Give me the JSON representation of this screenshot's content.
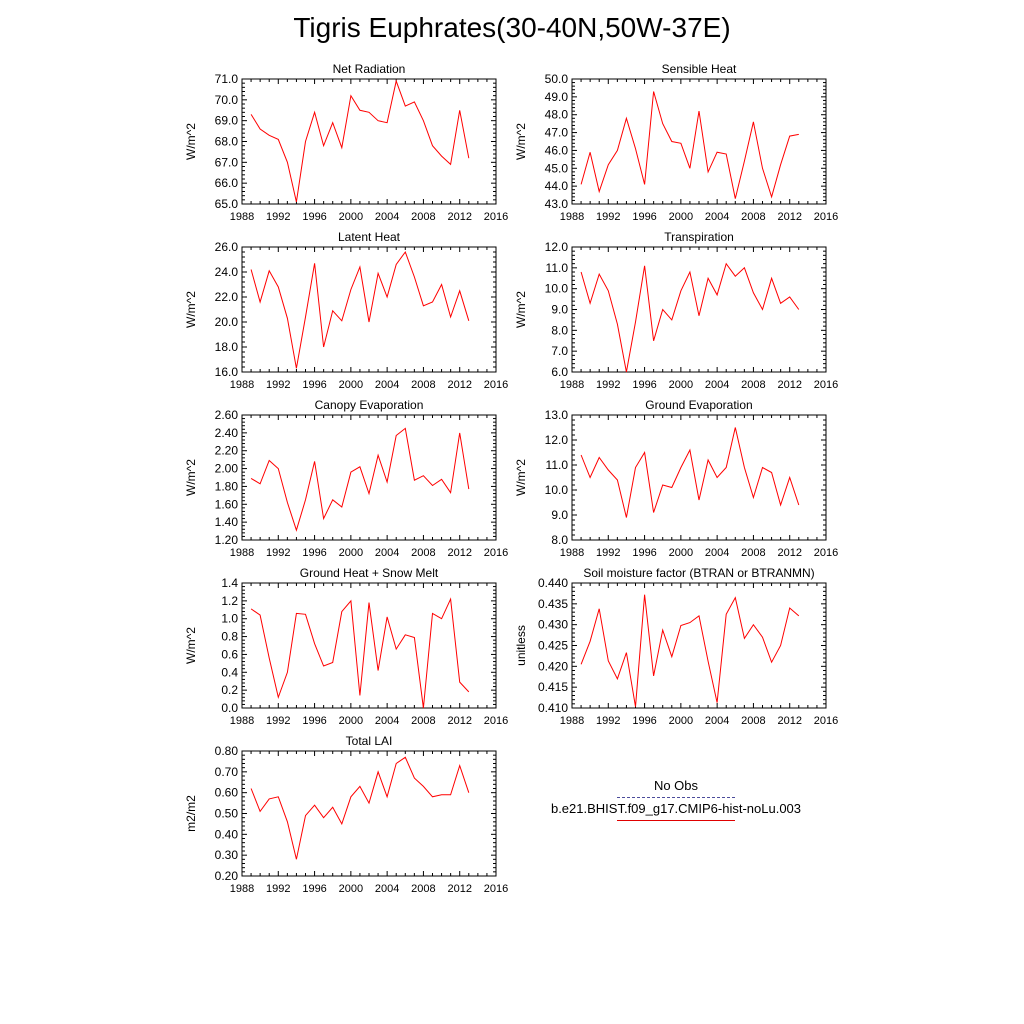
{
  "title": "Tigris Euphrates(30-40N,50W-37E)",
  "colors": {
    "line": "#ff0000",
    "obs": "#4b4b9a",
    "axis": "#000000"
  },
  "legend": {
    "obs_label": "No Obs",
    "model_label": "b.e21.BHIST.f09_g17.CMIP6-hist-noLu.003"
  },
  "chart_data": [
    {
      "type": "line",
      "title": "Net Radiation",
      "ylabel": "W/m^2",
      "xlim": [
        1988,
        2016
      ],
      "xticks": [
        1988,
        1992,
        1996,
        2000,
        2004,
        2008,
        2012,
        2016
      ],
      "ylim": [
        65.0,
        71.0
      ],
      "yticks": [
        65.0,
        66.0,
        67.0,
        68.0,
        69.0,
        70.0,
        71.0
      ],
      "ydecimals": 1,
      "x": [
        1989,
        1990,
        1991,
        1992,
        1993,
        1994,
        1995,
        1996,
        1997,
        1998,
        1999,
        2000,
        2001,
        2002,
        2003,
        2004,
        2005,
        2006,
        2007,
        2008,
        2009,
        2010,
        2011,
        2012,
        2013
      ],
      "series": [
        {
          "name": "b.e21.BHIST.f09_g17.CMIP6-hist-noLu.003",
          "values": [
            69.3,
            68.6,
            68.3,
            68.1,
            67.0,
            65.1,
            68.0,
            69.4,
            67.8,
            68.9,
            67.7,
            70.2,
            69.5,
            69.4,
            69.0,
            68.9,
            70.9,
            69.7,
            69.9,
            69.0,
            67.8,
            67.3,
            66.9,
            69.5,
            67.2
          ]
        }
      ]
    },
    {
      "type": "line",
      "title": "Sensible Heat",
      "ylabel": "W/m^2",
      "xlim": [
        1988,
        2016
      ],
      "xticks": [
        1988,
        1992,
        1996,
        2000,
        2004,
        2008,
        2012,
        2016
      ],
      "ylim": [
        43.0,
        50.0
      ],
      "yticks": [
        43.0,
        44.0,
        45.0,
        46.0,
        47.0,
        48.0,
        49.0,
        50.0
      ],
      "ydecimals": 1,
      "x": [
        1989,
        1990,
        1991,
        1992,
        1993,
        1994,
        1995,
        1996,
        1997,
        1998,
        1999,
        2000,
        2001,
        2002,
        2003,
        2004,
        2005,
        2006,
        2007,
        2008,
        2009,
        2010,
        2011,
        2012,
        2013
      ],
      "series": [
        {
          "name": "b.e21.BHIST.f09_g17.CMIP6-hist-noLu.003",
          "values": [
            44.1,
            45.9,
            43.7,
            45.2,
            46.0,
            47.8,
            46.1,
            44.1,
            49.3,
            47.5,
            46.5,
            46.4,
            45.0,
            48.2,
            44.8,
            45.9,
            45.8,
            43.3,
            45.4,
            47.6,
            45.0,
            43.4,
            45.2,
            46.8,
            46.9
          ]
        }
      ]
    },
    {
      "type": "line",
      "title": "Latent Heat",
      "ylabel": "W/m^2",
      "xlim": [
        1988,
        2016
      ],
      "xticks": [
        1988,
        1992,
        1996,
        2000,
        2004,
        2008,
        2012,
        2016
      ],
      "ylim": [
        16.0,
        26.0
      ],
      "yticks": [
        16.0,
        18.0,
        20.0,
        22.0,
        24.0,
        26.0
      ],
      "ydecimals": 1,
      "x": [
        1989,
        1990,
        1991,
        1992,
        1993,
        1994,
        1995,
        1996,
        1997,
        1998,
        1999,
        2000,
        2001,
        2002,
        2003,
        2004,
        2005,
        2006,
        2007,
        2008,
        2009,
        2010,
        2011,
        2012,
        2013
      ],
      "series": [
        {
          "name": "b.e21.BHIST.f09_g17.CMIP6-hist-noLu.003",
          "values": [
            24.2,
            21.6,
            24.1,
            22.8,
            20.3,
            16.3,
            20.4,
            24.7,
            18.0,
            20.9,
            20.1,
            22.6,
            24.4,
            20.0,
            23.9,
            22.0,
            24.6,
            25.6,
            23.6,
            21.3,
            21.6,
            23.0,
            20.4,
            22.5,
            20.1
          ]
        }
      ]
    },
    {
      "type": "line",
      "title": "Transpiration",
      "ylabel": "W/m^2",
      "xlim": [
        1988,
        2016
      ],
      "xticks": [
        1988,
        1992,
        1996,
        2000,
        2004,
        2008,
        2012,
        2016
      ],
      "ylim": [
        6.0,
        12.0
      ],
      "yticks": [
        6.0,
        7.0,
        8.0,
        9.0,
        10.0,
        11.0,
        12.0
      ],
      "ydecimals": 1,
      "x": [
        1989,
        1990,
        1991,
        1992,
        1993,
        1994,
        1995,
        1996,
        1997,
        1998,
        1999,
        2000,
        2001,
        2002,
        2003,
        2004,
        2005,
        2006,
        2007,
        2008,
        2009,
        2010,
        2011,
        2012,
        2013
      ],
      "series": [
        {
          "name": "b.e21.BHIST.f09_g17.CMIP6-hist-noLu.003",
          "values": [
            10.8,
            9.3,
            10.7,
            9.9,
            8.3,
            6.0,
            8.4,
            11.1,
            7.5,
            9.0,
            8.5,
            9.9,
            10.8,
            8.7,
            10.5,
            9.7,
            11.2,
            10.6,
            11.0,
            9.8,
            9.0,
            10.5,
            9.3,
            9.6,
            9.0
          ]
        }
      ]
    },
    {
      "type": "line",
      "title": "Canopy Evaporation",
      "ylabel": "W/m^2",
      "xlim": [
        1988,
        2016
      ],
      "xticks": [
        1988,
        1992,
        1996,
        2000,
        2004,
        2008,
        2012,
        2016
      ],
      "ylim": [
        1.2,
        2.6
      ],
      "yticks": [
        1.2,
        1.4,
        1.6,
        1.8,
        2.0,
        2.2,
        2.4,
        2.6
      ],
      "ydecimals": 2,
      "x": [
        1989,
        1990,
        1991,
        1992,
        1993,
        1994,
        1995,
        1996,
        1997,
        1998,
        1999,
        2000,
        2001,
        2002,
        2003,
        2004,
        2005,
        2006,
        2007,
        2008,
        2009,
        2010,
        2011,
        2012,
        2013
      ],
      "series": [
        {
          "name": "b.e21.BHIST.f09_g17.CMIP6-hist-noLu.003",
          "values": [
            1.89,
            1.83,
            2.09,
            2.0,
            1.62,
            1.31,
            1.65,
            2.08,
            1.44,
            1.65,
            1.57,
            1.96,
            2.02,
            1.72,
            2.15,
            1.85,
            2.37,
            2.45,
            1.87,
            1.92,
            1.81,
            1.88,
            1.73,
            2.4,
            1.77
          ]
        }
      ]
    },
    {
      "type": "line",
      "title": "Ground Evaporation",
      "ylabel": "W/m^2",
      "xlim": [
        1988,
        2016
      ],
      "xticks": [
        1988,
        1992,
        1996,
        2000,
        2004,
        2008,
        2012,
        2016
      ],
      "ylim": [
        8.0,
        13.0
      ],
      "yticks": [
        8.0,
        9.0,
        10.0,
        11.0,
        12.0,
        13.0
      ],
      "ydecimals": 1,
      "x": [
        1989,
        1990,
        1991,
        1992,
        1993,
        1994,
        1995,
        1996,
        1997,
        1998,
        1999,
        2000,
        2001,
        2002,
        2003,
        2004,
        2005,
        2006,
        2007,
        2008,
        2009,
        2010,
        2011,
        2012,
        2013
      ],
      "series": [
        {
          "name": "b.e21.BHIST.f09_g17.CMIP6-hist-noLu.003",
          "values": [
            11.4,
            10.5,
            11.3,
            10.8,
            10.4,
            8.9,
            10.9,
            11.5,
            9.1,
            10.2,
            10.1,
            10.9,
            11.6,
            9.6,
            11.2,
            10.5,
            10.9,
            12.5,
            10.9,
            9.7,
            10.9,
            10.7,
            9.4,
            10.5,
            9.4
          ]
        }
      ]
    },
    {
      "type": "line",
      "title": "Ground Heat + Snow Melt",
      "ylabel": "W/m^2",
      "xlim": [
        1988,
        2016
      ],
      "xticks": [
        1988,
        1992,
        1996,
        2000,
        2004,
        2008,
        2012,
        2016
      ],
      "ylim": [
        0.0,
        1.4
      ],
      "yticks": [
        0.0,
        0.2,
        0.4,
        0.6,
        0.8,
        1.0,
        1.2,
        1.4
      ],
      "ydecimals": 1,
      "x": [
        1989,
        1990,
        1991,
        1992,
        1993,
        1994,
        1995,
        1996,
        1997,
        1998,
        1999,
        2000,
        2001,
        2002,
        2003,
        2004,
        2005,
        2006,
        2007,
        2008,
        2009,
        2010,
        2011,
        2012,
        2013
      ],
      "series": [
        {
          "name": "b.e21.BHIST.f09_g17.CMIP6-hist-noLu.003",
          "values": [
            1.11,
            1.04,
            0.56,
            0.12,
            0.4,
            1.06,
            1.05,
            0.72,
            0.47,
            0.51,
            1.08,
            1.2,
            0.14,
            1.18,
            0.42,
            1.02,
            0.66,
            0.82,
            0.79,
            0.0,
            1.06,
            1.0,
            1.22,
            0.29,
            0.18
          ]
        }
      ]
    },
    {
      "type": "line",
      "title": "Soil moisture factor (BTRAN or BTRANMN)",
      "ylabel": "unitless",
      "xlim": [
        1988,
        2016
      ],
      "xticks": [
        1988,
        1992,
        1996,
        2000,
        2004,
        2008,
        2012,
        2016
      ],
      "ylim": [
        0.41,
        0.44
      ],
      "yticks": [
        0.41,
        0.415,
        0.42,
        0.425,
        0.43,
        0.435,
        0.44
      ],
      "ydecimals": 3,
      "x": [
        1989,
        1990,
        1991,
        1992,
        1993,
        1994,
        1995,
        1996,
        1997,
        1998,
        1999,
        2000,
        2001,
        2002,
        2003,
        2004,
        2005,
        2006,
        2007,
        2008,
        2009,
        2010,
        2011,
        2012,
        2013
      ],
      "series": [
        {
          "name": "b.e21.BHIST.f09_g17.CMIP6-hist-noLu.003",
          "values": [
            0.4205,
            0.426,
            0.4338,
            0.4213,
            0.417,
            0.4233,
            0.4103,
            0.4372,
            0.4177,
            0.4287,
            0.4223,
            0.4298,
            0.4305,
            0.4321,
            0.4212,
            0.4113,
            0.4325,
            0.4365,
            0.4267,
            0.43,
            0.427,
            0.421,
            0.425,
            0.434,
            0.4321
          ]
        }
      ]
    },
    {
      "type": "line",
      "title": "Total LAI",
      "ylabel": "m2/m2",
      "xlim": [
        1988,
        2016
      ],
      "xticks": [
        1988,
        1992,
        1996,
        2000,
        2004,
        2008,
        2012,
        2016
      ],
      "ylim": [
        0.2,
        0.8
      ],
      "yticks": [
        0.2,
        0.3,
        0.4,
        0.5,
        0.6,
        0.7,
        0.8
      ],
      "ydecimals": 2,
      "x": [
        1989,
        1990,
        1991,
        1992,
        1993,
        1994,
        1995,
        1996,
        1997,
        1998,
        1999,
        2000,
        2001,
        2002,
        2003,
        2004,
        2005,
        2006,
        2007,
        2008,
        2009,
        2010,
        2011,
        2012,
        2013
      ],
      "series": [
        {
          "name": "b.e21.BHIST.f09_g17.CMIP6-hist-noLu.003",
          "values": [
            0.62,
            0.51,
            0.57,
            0.58,
            0.46,
            0.28,
            0.49,
            0.54,
            0.48,
            0.53,
            0.45,
            0.58,
            0.63,
            0.55,
            0.7,
            0.58,
            0.74,
            0.77,
            0.67,
            0.63,
            0.58,
            0.59,
            0.59,
            0.73,
            0.6
          ]
        }
      ]
    }
  ]
}
